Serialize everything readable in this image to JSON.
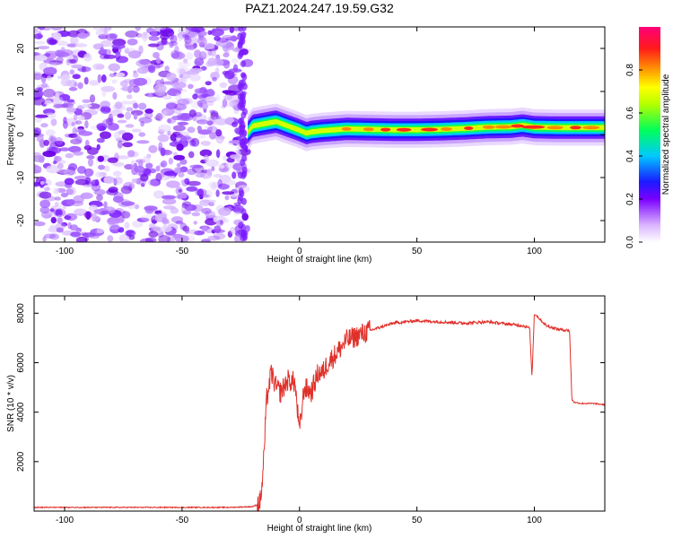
{
  "title": "PAZ1.2024.247.19.59.G32",
  "chart_data": [
    {
      "type": "heatmap",
      "name": "spectrogram",
      "xlabel": "Height of straight line (km)",
      "ylabel": "Frequency (Hz)",
      "xlim": [
        -113,
        130
      ],
      "ylim": [
        -25,
        25
      ],
      "xticks": [
        -100,
        -50,
        0,
        50,
        100
      ],
      "yticks": [
        -20,
        -10,
        0,
        10,
        20
      ],
      "noise_region_x": [
        -113,
        -22
      ],
      "ridge": {
        "x": [
          -22,
          -20,
          -15,
          -10,
          -5,
          0,
          3,
          5,
          10,
          15,
          20,
          30,
          40,
          50,
          60,
          70,
          80,
          90,
          95,
          100,
          110,
          120,
          130
        ],
        "y": [
          0.5,
          2.0,
          2.5,
          3.0,
          2.0,
          1.0,
          0.3,
          0.6,
          0.9,
          1.1,
          1.3,
          1.2,
          1.1,
          1.1,
          1.2,
          1.4,
          1.7,
          1.8,
          2.1,
          1.7,
          1.6,
          1.6,
          1.6
        ]
      },
      "colorbar": {
        "label": "Normalized spectral amplitude",
        "ticks": [
          0.0,
          0.2,
          0.4,
          0.6,
          0.8
        ],
        "range": [
          0,
          1
        ],
        "colormap": "rainbow (white-purple-blue-cyan-green-yellow-orange-red-magenta)"
      }
    },
    {
      "type": "line",
      "name": "snr",
      "xlabel": "Height of straight line (km)",
      "ylabel": "SNR (10 * v/v)",
      "xlim": [
        -113,
        130
      ],
      "ylim": [
        0,
        8700
      ],
      "xticks": [
        -100,
        -50,
        0,
        50,
        100
      ],
      "yticks": [
        2000,
        4000,
        6000,
        8000
      ],
      "color": "#e0302a",
      "series": [
        {
          "x": [
            -113,
            -60,
            -30,
            -20,
            -17,
            -16,
            -15,
            -14,
            -12,
            -10,
            -8,
            -5,
            -2,
            0,
            2,
            5,
            8,
            10,
            12,
            15,
            20,
            25,
            30,
            40,
            50,
            60,
            70,
            80,
            90,
            95,
            98,
            99,
            100,
            105,
            110,
            115,
            116,
            117,
            120,
            125,
            130
          ],
          "y": [
            150,
            150,
            150,
            180,
            300,
            900,
            2500,
            4500,
            5600,
            5000,
            4800,
            5300,
            5200,
            3200,
            5000,
            4800,
            5600,
            5600,
            6000,
            6300,
            6900,
            7100,
            7300,
            7600,
            7700,
            7650,
            7600,
            7650,
            7550,
            7500,
            7400,
            5400,
            8000,
            7500,
            7350,
            7300,
            4500,
            4400,
            4350,
            4350,
            4300
          ]
        }
      ]
    }
  ]
}
